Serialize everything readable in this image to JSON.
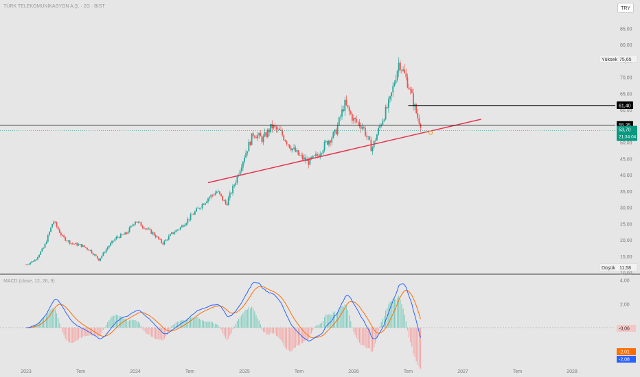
{
  "header": {
    "title": "TÜRK TELEKOMÜNİKASYON A.Ş. · 2G · BIST",
    "currency": "TRY"
  },
  "macd_header": {
    "label": "MACD (close, 12, 26, 9)"
  },
  "colors": {
    "up": "#26a69a",
    "down": "#ef5350",
    "trendline": "#e5334d",
    "macd_line": "#2962ff",
    "signal_line": "#ff6d00",
    "level_line": "#000000",
    "price_badge": "#089981"
  },
  "chart_data": [
    {
      "type": "candlestick",
      "title": "TÜRK TELEKOMÜNİKASYON A.Ş. · 2G · BIST",
      "x_ticks": [
        "2023",
        "Tem",
        "2024",
        "Tem",
        "2025",
        "Tem",
        "2026",
        "Tem",
        "2027",
        "Tem",
        "2028"
      ],
      "y_ticks": [
        "10,00",
        "15,00",
        "20,00",
        "25,00",
        "30,00",
        "35,00",
        "40,00",
        "45,00",
        "50,00",
        "55,00",
        "60,00",
        "65,00",
        "70,00",
        "75,00",
        "80,00",
        "85,00"
      ],
      "y_range": [
        10,
        85
      ],
      "price_path": [
        [
          "2023-01",
          12.5
        ],
        [
          "2023-02",
          14
        ],
        [
          "2023-03",
          18
        ],
        [
          "2023-04",
          26
        ],
        [
          "2023-05",
          21
        ],
        [
          "2023-06",
          19
        ],
        [
          "2023-07",
          18.5
        ],
        [
          "2023-08",
          17
        ],
        [
          "2023-09",
          14
        ],
        [
          "2023-10",
          18
        ],
        [
          "2023-11",
          21
        ],
        [
          "2023-12",
          22
        ],
        [
          "2024-01",
          26
        ],
        [
          "2024-02",
          24
        ],
        [
          "2024-03",
          22
        ],
        [
          "2024-04",
          19
        ],
        [
          "2024-05",
          22
        ],
        [
          "2024-06",
          24
        ],
        [
          "2024-07",
          27
        ],
        [
          "2024-08",
          30
        ],
        [
          "2024-09",
          33
        ],
        [
          "2024-10",
          35
        ],
        [
          "2024-11",
          31
        ],
        [
          "2024-12",
          38
        ],
        [
          "2025-01",
          46
        ],
        [
          "2025-02",
          53
        ],
        [
          "2025-03",
          51
        ],
        [
          "2025-04",
          55
        ],
        [
          "2025-05",
          53
        ],
        [
          "2025-06",
          49
        ],
        [
          "2025-07",
          46
        ],
        [
          "2025-08",
          44
        ],
        [
          "2025-09",
          46
        ],
        [
          "2025-10",
          50
        ],
        [
          "2025-11",
          53
        ],
        [
          "2025-12",
          62
        ],
        [
          "2026-01",
          57
        ],
        [
          "2026-02",
          55
        ],
        [
          "2026-03",
          48
        ],
        [
          "2026-04",
          56
        ],
        [
          "2026-05",
          63
        ],
        [
          "2026-06",
          75
        ],
        [
          "2026-07",
          68
        ],
        [
          "2026-08",
          58
        ],
        [
          "2026-09",
          52
        ]
      ],
      "annotations": {
        "high": {
          "label": "Yüksek",
          "value": "75,65"
        },
        "low": {
          "label": "Düşük",
          "value": "11,58"
        },
        "level_top": "61,40",
        "level_mid": "55,35",
        "last_price": "53,70",
        "countdown": "21:34:04",
        "trendline": {
          "from": [
            "2024-09",
            37.7
          ],
          "to": [
            "2027-03",
            57.2
          ]
        }
      }
    },
    {
      "type": "line",
      "title": "MACD (close, 12, 26, 9)",
      "y_ticks": [
        "4,00",
        "2,00",
        "-2,00"
      ],
      "series_values_last": {
        "histogram": "-0,06",
        "signal": "-2,01",
        "macd": "-2,08"
      }
    }
  ]
}
